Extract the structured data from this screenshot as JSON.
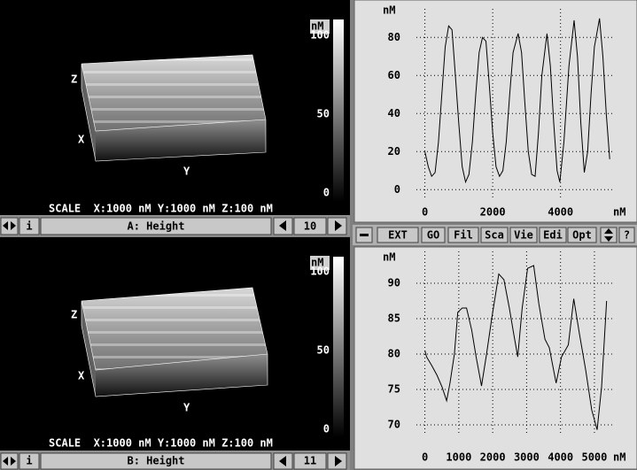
{
  "panels": [
    {
      "scale": "SCALE  X:1000 nM Y:1000 nM Z:100 nM",
      "axes": {
        "z": "Z",
        "x": "X",
        "y": "Y"
      },
      "colorbar": {
        "unit": "nM",
        "ticks": [
          100,
          50,
          0
        ]
      },
      "controls": {
        "info": "i",
        "label": "A: Height",
        "number": "10"
      }
    },
    {
      "scale": "SCALE  X:1000 nM Y:1000 nM Z:100 nM",
      "axes": {
        "z": "Z",
        "x": "X",
        "y": "Y"
      },
      "colorbar": {
        "unit": "nM",
        "ticks": [
          100,
          50,
          0
        ]
      },
      "controls": {
        "info": "i",
        "label": "B: Height",
        "number": "11"
      }
    }
  ],
  "toolbar": [
    "EXT",
    "GO",
    "Fil",
    "Sca",
    "Vie",
    "Edi",
    "Opt",
    "?"
  ],
  "chart_data": [
    {
      "type": "line",
      "y_label": "nM",
      "x_label": "nM",
      "color": "#000000",
      "grid": true,
      "x": [
        0,
        100,
        200,
        300,
        400,
        500,
        600,
        700,
        800,
        900,
        1000,
        1100,
        1200,
        1300,
        1400,
        1500,
        1600,
        1700,
        1800,
        1900,
        2000,
        2100,
        2200,
        2300,
        2400,
        2500,
        2600,
        2750,
        2850,
        2950,
        3050,
        3150,
        3250,
        3350,
        3450,
        3600,
        3700,
        3800,
        3900,
        3980,
        4100,
        4250,
        4400,
        4500,
        4600,
        4700,
        4800,
        4900,
        5000,
        5150,
        5250,
        5350,
        5450
      ],
      "values": [
        20,
        12,
        7,
        9,
        25,
        50,
        75,
        86,
        84,
        60,
        35,
        12,
        4,
        8,
        25,
        50,
        72,
        80,
        78,
        55,
        30,
        12,
        7,
        10,
        25,
        50,
        72,
        82,
        72,
        45,
        20,
        8,
        7,
        30,
        60,
        82,
        65,
        35,
        10,
        4,
        25,
        65,
        89,
        70,
        35,
        9,
        20,
        50,
        75,
        90,
        70,
        40,
        16
      ],
      "xlim": [
        -250,
        5550
      ],
      "ylim": [
        -5,
        95
      ],
      "xticks": [
        0,
        2000,
        4000
      ],
      "yticks": [
        0,
        20,
        40,
        60,
        80
      ]
    },
    {
      "type": "line",
      "y_label": "nM",
      "x_label": "nM",
      "color": "#000000",
      "grid": true,
      "x": [
        0,
        50,
        200,
        360,
        510,
        640,
        740,
        870,
        970,
        1100,
        1230,
        1380,
        1510,
        1670,
        1820,
        1970,
        2180,
        2330,
        2490,
        2620,
        2740,
        2870,
        3030,
        3210,
        3360,
        3540,
        3670,
        3870,
        4030,
        4230,
        4390,
        4560,
        4740,
        4920,
        5080,
        5210,
        5360
      ],
      "values": [
        80.5,
        79.6,
        78.4,
        77,
        75.3,
        73.4,
        75.9,
        80,
        85.9,
        86.5,
        86.5,
        83.4,
        79.6,
        75.5,
        80,
        85,
        91.3,
        90.5,
        86.5,
        82.8,
        79.6,
        86.5,
        92.1,
        92.5,
        87.1,
        82.1,
        80.9,
        75.9,
        79.6,
        81.3,
        87.8,
        82.8,
        77.8,
        72.1,
        69.3,
        75.3,
        87.5
      ],
      "xlim": [
        -250,
        5550
      ],
      "ylim": [
        68.5,
        94.5
      ],
      "xticks": [
        0,
        1000,
        2000,
        3000,
        4000,
        5000
      ],
      "yticks": [
        70,
        75,
        80,
        85,
        90
      ]
    }
  ]
}
